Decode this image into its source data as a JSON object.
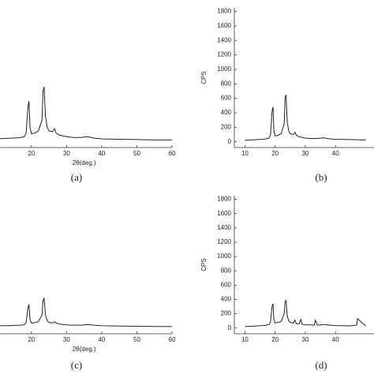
{
  "chart_data": [
    {
      "type": "line",
      "xlabel": "2θ(deg.)",
      "caption": "(a)",
      "xlim": [
        5,
        60
      ],
      "ylim": [
        -80,
        1850
      ],
      "xticks": [
        20,
        30,
        40,
        50,
        60
      ],
      "series": [
        {
          "color": "#222222",
          "x": [
            10,
            12,
            14,
            16,
            17,
            18,
            18.5,
            19,
            19.3,
            19.6,
            20,
            21,
            22,
            23,
            23.3,
            23.6,
            24,
            24.5,
            25,
            26,
            26.6,
            27,
            28,
            30,
            32,
            34,
            36,
            38,
            40,
            45,
            50,
            55,
            60
          ],
          "values": [
            40,
            45,
            50,
            55,
            60,
            70,
            120,
            480,
            560,
            200,
            110,
            120,
            150,
            300,
            700,
            760,
            350,
            200,
            150,
            140,
            180,
            120,
            90,
            70,
            60,
            60,
            70,
            50,
            40,
            35,
            30,
            25,
            25
          ]
        }
      ]
    },
    {
      "type": "line",
      "ylabel": "CPS",
      "caption": "(b)",
      "xlim": [
        6.5,
        53
      ],
      "ylim": [
        -80,
        1850
      ],
      "xticks": [
        10,
        20,
        30,
        40
      ],
      "yticks": [
        0,
        200,
        400,
        600,
        800,
        1000,
        1200,
        1400,
        1600,
        1800
      ],
      "series": [
        {
          "color": "#222222",
          "x": [
            10,
            12,
            14,
            16,
            17,
            18,
            18.5,
            19,
            19.3,
            19.6,
            20,
            21,
            22,
            23,
            23.3,
            23.6,
            24,
            24.5,
            25,
            26,
            26.6,
            27,
            28,
            30,
            32,
            34,
            36,
            38,
            40,
            45,
            50
          ],
          "values": [
            20,
            25,
            30,
            35,
            40,
            50,
            100,
            420,
            480,
            150,
            80,
            90,
            110,
            250,
            600,
            650,
            280,
            150,
            110,
            100,
            130,
            90,
            70,
            50,
            45,
            45,
            55,
            40,
            35,
            30,
            25
          ]
        }
      ]
    },
    {
      "type": "line",
      "xlabel": "2θ(deg.)",
      "caption": "(c)",
      "xlim": [
        5,
        60
      ],
      "ylim": [
        -80,
        1850
      ],
      "xticks": [
        20,
        30,
        40,
        50,
        60
      ],
      "series": [
        {
          "color": "#222222",
          "x": [
            10,
            12,
            14,
            16,
            17,
            18,
            18.5,
            19,
            19.3,
            19.6,
            20,
            21,
            22,
            23,
            23.3,
            23.6,
            24,
            24.5,
            25,
            26,
            26.6,
            27,
            28,
            30,
            32,
            34,
            36,
            38,
            40,
            45,
            50,
            55,
            60
          ],
          "values": [
            30,
            32,
            35,
            38,
            40,
            45,
            80,
            280,
            330,
            120,
            70,
            75,
            90,
            180,
            380,
            420,
            180,
            100,
            80,
            70,
            90,
            70,
            55,
            45,
            40,
            40,
            50,
            38,
            32,
            28,
            25,
            22,
            20
          ]
        }
      ]
    },
    {
      "type": "line",
      "ylabel": "CPS",
      "caption": "(d)",
      "xlim": [
        6.5,
        53
      ],
      "ylim": [
        -80,
        1850
      ],
      "xticks": [
        10,
        20,
        30,
        40
      ],
      "yticks": [
        0,
        200,
        400,
        600,
        800,
        1000,
        1200,
        1400,
        1600,
        1800
      ],
      "series": [
        {
          "color": "#222222",
          "x": [
            10,
            12,
            14,
            16,
            17,
            18,
            18.5,
            19,
            19.3,
            19.6,
            20,
            21,
            22,
            23,
            23.3,
            23.6,
            24,
            24.5,
            25,
            26,
            26.6,
            27,
            28,
            28.5,
            29,
            30,
            32,
            33,
            33.3,
            34,
            36,
            38,
            40,
            45,
            47,
            47.3,
            50
          ],
          "values": [
            20,
            25,
            30,
            35,
            40,
            50,
            90,
            300,
            340,
            120,
            70,
            80,
            90,
            200,
            360,
            390,
            170,
            100,
            80,
            70,
            110,
            60,
            60,
            120,
            50,
            45,
            45,
            40,
            110,
            40,
            50,
            40,
            35,
            30,
            40,
            130,
            30
          ]
        }
      ]
    }
  ]
}
